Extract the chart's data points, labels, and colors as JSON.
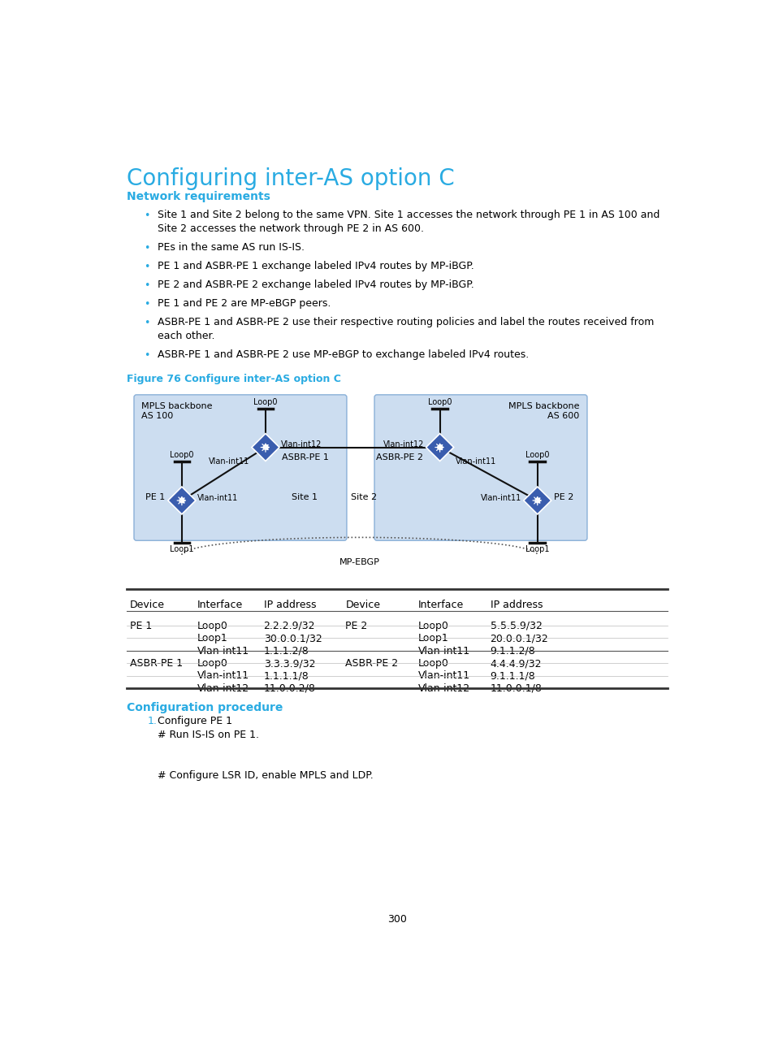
{
  "title": "Configuring inter-AS option C",
  "title_color": "#29abe2",
  "title_fontsize": 20,
  "section1_title": "Network requirements",
  "section1_color": "#29abe2",
  "section1_fontsize": 10,
  "bullets": [
    "Site 1 and Site 2 belong to the same VPN. Site 1 accesses the network through PE 1 in AS 100 and\nSite 2 accesses the network through PE 2 in AS 600.",
    "PEs in the same AS run IS-IS.",
    "PE 1 and ASBR-PE 1 exchange labeled IPv4 routes by MP-iBGP.",
    "PE 2 and ASBR-PE 2 exchange labeled IPv4 routes by MP-iBGP.",
    "PE 1 and PE 2 are MP-eBGP peers.",
    "ASBR-PE 1 and ASBR-PE 2 use their respective routing policies and label the routes received from\neach other.",
    "ASBR-PE 1 and ASBR-PE 2 use MP-eBGP to exchange labeled IPv4 routes."
  ],
  "figure_title": "Figure 76 Configure inter-AS option C",
  "figure_title_color": "#29abe2",
  "figure_title_fontsize": 9,
  "section2_title": "Configuration procedure",
  "section2_color": "#29abe2",
  "section2_fontsize": 10,
  "config_steps": [
    {
      "num": "1.",
      "text": "Configure PE 1",
      "color": "#29abe2"
    },
    {
      "num": "",
      "text": "# Run IS-IS on PE 1.",
      "color": "#000000"
    },
    {
      "num": "",
      "text": "# Configure LSR ID, enable MPLS and LDP.",
      "color": "#000000"
    }
  ],
  "page_number": "300",
  "bg_color": "#ffffff",
  "text_color": "#000000",
  "body_fontsize": 9,
  "bullet_color": "#29abe2",
  "table_headers": [
    "Device",
    "Interface",
    "IP address",
    "Device",
    "Interface",
    "IP address"
  ],
  "table_rows": [
    [
      "PE 1",
      "Loop0",
      "2.2.2.9/32",
      "PE 2",
      "Loop0",
      "5.5.5.9/32"
    ],
    [
      "",
      "Loop1",
      "30.0.0.1/32",
      "",
      "Loop1",
      "20.0.0.1/32"
    ],
    [
      "",
      "Vlan-int11",
      "1.1.1.2/8",
      "",
      "Vlan-int11",
      "9.1.1.2/8"
    ],
    [
      "ASBR-PE 1",
      "Loop0",
      "3.3.3.9/32",
      "ASBR-PE 2",
      "Loop0",
      "4.4.4.9/32"
    ],
    [
      "",
      "Vlan-int11",
      "1.1.1.1/8",
      "",
      "Vlan-int11",
      "9.1.1.1/8"
    ],
    [
      "",
      "Vlan-int12",
      "11.0.0.2/8",
      "",
      "Vlan-int12",
      "11.0.0.1/8"
    ]
  ]
}
